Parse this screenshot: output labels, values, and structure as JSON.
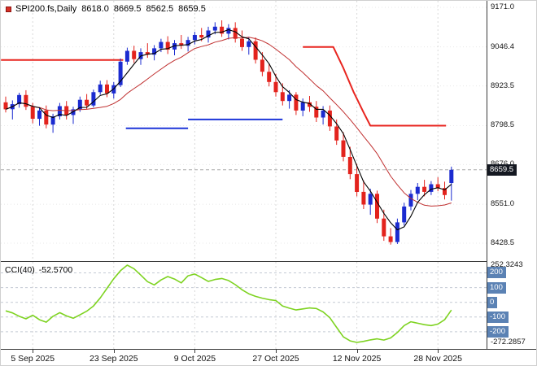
{
  "header": {
    "symbol": "SPI200.fs,Daily",
    "open": "8618.0",
    "high": "8669.5",
    "low": "8562.5",
    "close": "8659.5"
  },
  "price_axis": {
    "labels": [
      {
        "value": 9171.0,
        "text": "9171.0"
      },
      {
        "value": 9046.4,
        "text": "9046.4"
      },
      {
        "value": 8923.5,
        "text": "8923.5"
      },
      {
        "value": 8798.5,
        "text": "8798.5"
      },
      {
        "value": 8676.0,
        "text": "8676.0"
      },
      {
        "value": 8551.0,
        "text": "8551.0"
      },
      {
        "value": 8428.5,
        "text": "8428.5"
      }
    ],
    "current_price": {
      "value": 8659.5,
      "text": "8659.5"
    }
  },
  "time_axis": {
    "labels": [
      {
        "index": 4,
        "text": "5 Sep 2025"
      },
      {
        "index": 16,
        "text": "23 Sep 2025"
      },
      {
        "index": 28,
        "text": "9 Oct 2025"
      },
      {
        "index": 40,
        "text": "27 Oct 2025"
      },
      {
        "index": 52,
        "text": "12 Nov 2025"
      },
      {
        "index": 64,
        "text": "28 Nov 2025"
      }
    ]
  },
  "cci": {
    "name": "CCI(40)",
    "value": "-52.5700",
    "axis": {
      "max": {
        "value": 252.3243,
        "text": "252.3243"
      },
      "min": {
        "value": -272.2857,
        "text": "-272.2857"
      },
      "levels": [
        200,
        100,
        0,
        -100,
        -200
      ]
    }
  },
  "colors": {
    "up": "#1b2bd0",
    "down": "#e3231d",
    "ma_fast": "#000000",
    "ma_slow": "#c03030",
    "resistance": "#e8251f",
    "support": "#1d35d9",
    "cci_line": "#7ed321",
    "grid": "#d9d9d9",
    "grid_h": "#e8e8e8",
    "level_line": "#c4c9d4",
    "badge_price_bg": "#141821",
    "badge_level_bg": "#5b82b4",
    "price_line": "#a8a8a8"
  },
  "chart_data": [
    {
      "type": "candlestick",
      "title": "SPI200.fs Daily",
      "ylim": [
        8428.5,
        9171.0
      ],
      "candles": [
        [
          8872,
          8890,
          8840,
          8850
        ],
        [
          8850,
          8878,
          8818,
          8866
        ],
        [
          8866,
          8902,
          8855,
          8895
        ],
        [
          8895,
          8910,
          8848,
          8858
        ],
        [
          8858,
          8870,
          8806,
          8820
        ],
        [
          8820,
          8856,
          8798,
          8846
        ],
        [
          8846,
          8862,
          8790,
          8802
        ],
        [
          8802,
          8836,
          8776,
          8828
        ],
        [
          8828,
          8870,
          8818,
          8860
        ],
        [
          8860,
          8876,
          8818,
          8832
        ],
        [
          8832,
          8858,
          8804,
          8850
        ],
        [
          8850,
          8890,
          8842,
          8880
        ],
        [
          8880,
          8898,
          8850,
          8862
        ],
        [
          8862,
          8912,
          8856,
          8904
        ],
        [
          8904,
          8940,
          8896,
          8928
        ],
        [
          8928,
          8942,
          8888,
          8900
        ],
        [
          8900,
          8936,
          8884,
          8926
        ],
        [
          8926,
          9010,
          8920,
          9000
        ],
        [
          9000,
          9044,
          8990,
          9034
        ],
        [
          9034,
          9050,
          8996,
          9008
        ],
        [
          9008,
          9042,
          8990,
          9030
        ],
        [
          9030,
          9058,
          9012,
          9022
        ],
        [
          9022,
          9052,
          9004,
          9042
        ],
        [
          9042,
          9072,
          9030,
          9062
        ],
        [
          9062,
          9080,
          9024,
          9038
        ],
        [
          9038,
          9068,
          9020,
          9058
        ],
        [
          9058,
          9084,
          9040,
          9050
        ],
        [
          9050,
          9078,
          9032,
          9068
        ],
        [
          9068,
          9094,
          9054,
          9084
        ],
        [
          9084,
          9106,
          9064,
          9076
        ],
        [
          9076,
          9110,
          9060,
          9098
        ],
        [
          9098,
          9124,
          9086,
          9110
        ],
        [
          9110,
          9130,
          9078,
          9088
        ],
        [
          9088,
          9118,
          9070,
          9106
        ],
        [
          9106,
          9124,
          9060,
          9072
        ],
        [
          9072,
          9098,
          9034,
          9046
        ],
        [
          9046,
          9078,
          9022,
          9064
        ],
        [
          9064,
          9076,
          8994,
          9006
        ],
        [
          9006,
          9030,
          8954,
          8968
        ],
        [
          8968,
          8994,
          8922,
          8936
        ],
        [
          8936,
          8962,
          8890,
          8904
        ],
        [
          8904,
          8932,
          8862,
          8876
        ],
        [
          8876,
          8910,
          8852,
          8896
        ],
        [
          8896,
          8904,
          8832,
          8846
        ],
        [
          8846,
          8884,
          8828,
          8872
        ],
        [
          8872,
          8892,
          8842,
          8858
        ],
        [
          8858,
          8876,
          8810,
          8824
        ],
        [
          8824,
          8860,
          8802,
          8846
        ],
        [
          8846,
          8862,
          8782,
          8796
        ],
        [
          8796,
          8818,
          8738,
          8752
        ],
        [
          8752,
          8778,
          8686,
          8700
        ],
        [
          8700,
          8732,
          8630,
          8646
        ],
        [
          8646,
          8678,
          8576,
          8590
        ],
        [
          8590,
          8626,
          8536,
          8550
        ],
        [
          8550,
          8600,
          8518,
          8584
        ],
        [
          8584,
          8594,
          8492,
          8506
        ],
        [
          8506,
          8534,
          8436,
          8450
        ],
        [
          8450,
          8476,
          8424,
          8432
        ],
        [
          8432,
          8506,
          8426,
          8494
        ],
        [
          8494,
          8556,
          8484,
          8544
        ],
        [
          8544,
          8596,
          8532,
          8584
        ],
        [
          8584,
          8618,
          8564,
          8606
        ],
        [
          8606,
          8628,
          8576,
          8590
        ],
        [
          8590,
          8624,
          8580,
          8614
        ],
        [
          8614,
          8636,
          8592,
          8602
        ],
        [
          8602,
          8622,
          8566,
          8580
        ],
        [
          8618,
          8669.5,
          8562.5,
          8659.5
        ]
      ],
      "overlays": {
        "ma_fast_period": 4,
        "ma_slow_period": 12,
        "lines": [
          {
            "color_key": "resistance",
            "points": [
              [
                -0.7,
                9005
              ],
              [
                17.4,
                9005
              ]
            ]
          },
          {
            "color_key": "support",
            "points": [
              [
                17.8,
                8790
              ],
              [
                27,
                8790
              ]
            ]
          },
          {
            "color_key": "support",
            "points": [
              [
                27,
                8818
              ],
              [
                41,
                8818
              ]
            ]
          },
          {
            "color_key": "resistance",
            "points": [
              [
                44,
                9046.4
              ],
              [
                48.5,
                9046.4
              ],
              [
                50,
                8980
              ],
              [
                51.5,
                8905
              ],
              [
                53,
                8840
              ],
              [
                54,
                8798.5
              ],
              [
                65.2,
                8798.5
              ]
            ]
          }
        ]
      }
    },
    {
      "type": "line",
      "name": "CCI(40)",
      "ylim": [
        -272.2857,
        252.3243
      ],
      "levels": [
        200,
        100,
        0,
        -100,
        -200
      ],
      "values": [
        -58,
        -72,
        -95,
        -112,
        -88,
        -118,
        -135,
        -95,
        -70,
        -92,
        -108,
        -85,
        -60,
        -25,
        30,
        95,
        160,
        215,
        252.3243,
        228,
        185,
        140,
        118,
        152,
        175,
        158,
        132,
        180,
        192,
        168,
        142,
        155,
        162,
        148,
        120,
        85,
        58,
        40,
        28,
        18,
        12,
        -25,
        -40,
        -52,
        -45,
        -38,
        -42,
        -65,
        -105,
        -170,
        -235,
        -262,
        -272.2857,
        -265,
        -255,
        -248,
        -256,
        -242,
        -205,
        -158,
        -132,
        -142,
        -152,
        -158,
        -148,
        -118,
        -52.57
      ]
    }
  ]
}
